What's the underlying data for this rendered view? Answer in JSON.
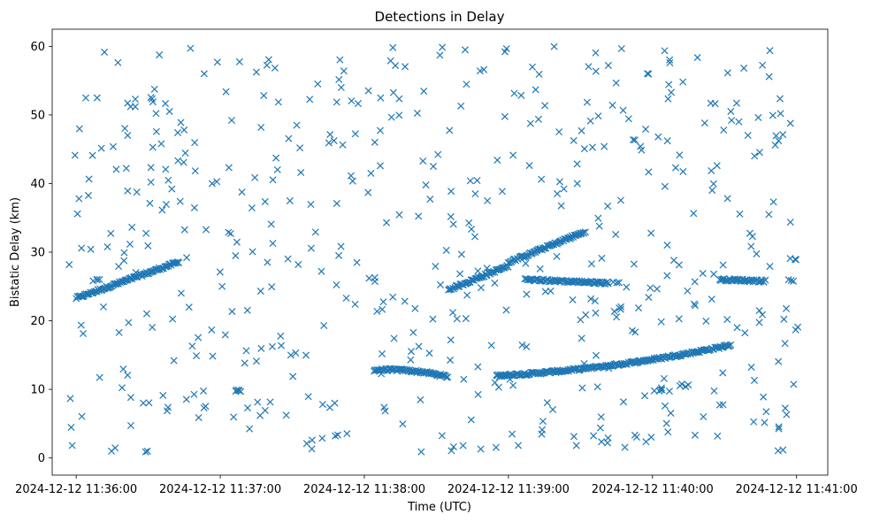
{
  "chart_data": {
    "type": "scatter",
    "title": "Detections in Delay",
    "xlabel": "Time (UTC)",
    "ylabel": "Bistatic Delay (km)",
    "marker": "x",
    "color": "#1f77b4",
    "grid": false,
    "xlim": [
      "2024-12-12 11:35:50",
      "2024-12-12 11:41:13"
    ],
    "ylim": [
      -2.5,
      62.5
    ],
    "x_ticks": [
      "2024-12-12 11:36:00",
      "2024-12-12 11:37:00",
      "2024-12-12 11:38:00",
      "2024-12-12 11:39:00",
      "2024-12-12 11:40:00",
      "2024-12-12 11:41:00"
    ],
    "y_ticks": [
      0,
      10,
      20,
      30,
      40,
      50,
      60
    ],
    "tracks": [
      {
        "x_start": "2024-12-12 11:36:00",
        "x_end": "2024-12-12 11:36:43",
        "y_start": 23.3,
        "y_end": 28.6,
        "curve": 0.0
      },
      {
        "x_start": "2024-12-12 11:38:04",
        "x_end": "2024-12-12 11:38:35",
        "y_start": 12.8,
        "y_end": 11.8,
        "curve": 0.4
      },
      {
        "x_start": "2024-12-12 11:38:35",
        "x_end": "2024-12-12 11:39:00",
        "y_start": 24.5,
        "y_end": 28.0,
        "curve": 0.0
      },
      {
        "x_start": "2024-12-12 11:38:55",
        "x_end": "2024-12-12 11:40:33",
        "y_start": 12.0,
        "y_end": 16.5,
        "curve": -0.7
      },
      {
        "x_start": "2024-12-12 11:39:00",
        "x_end": "2024-12-12 11:39:32",
        "y_start": 28.5,
        "y_end": 33.0,
        "curve": 0.0
      },
      {
        "x_start": "2024-12-12 11:39:07",
        "x_end": "2024-12-12 11:39:42",
        "y_start": 26.0,
        "y_end": 25.5,
        "curve": 0.0
      },
      {
        "x_start": "2024-12-12 11:40:28",
        "x_end": "2024-12-12 11:40:47",
        "y_start": 26.0,
        "y_end": 25.8,
        "curve": 0.0
      }
    ],
    "clusters": [
      {
        "x": "2024-12-12 11:36:09",
        "y": 26.0,
        "n": 4
      },
      {
        "x": "2024-12-12 11:37:08",
        "y": 9.9,
        "n": 5
      },
      {
        "x": "2024-12-12 11:38:03",
        "y": 26.0,
        "n": 3
      },
      {
        "x": "2024-12-12 11:39:00",
        "y": 59.5,
        "n": 2
      },
      {
        "x": "2024-12-12 11:39:45",
        "y": 25.3,
        "n": 2
      },
      {
        "x": "2024-12-12 11:40:02",
        "y": 10.0,
        "n": 5
      },
      {
        "x": "2024-12-12 11:40:00",
        "y": 24.5,
        "n": 2
      },
      {
        "x": "2024-12-12 11:40:13",
        "y": 10.5,
        "n": 4
      },
      {
        "x": "2024-12-12 11:40:58",
        "y": 26.0,
        "n": 3
      },
      {
        "x": "2024-12-12 11:40:59",
        "y": 29.0,
        "n": 3
      },
      {
        "x": "2024-12-12 11:40:53",
        "y": 4.5,
        "n": 2
      },
      {
        "x": "2024-12-12 11:41:00",
        "y": 18.8,
        "n": 2
      }
    ],
    "noise_points": 520
  }
}
